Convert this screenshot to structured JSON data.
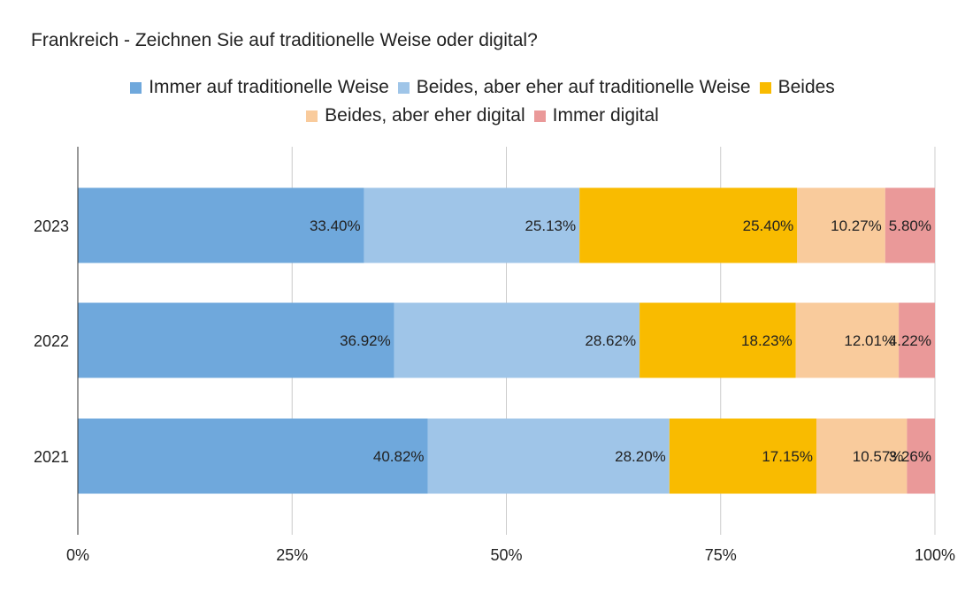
{
  "chart_data": {
    "type": "bar",
    "orientation": "horizontal",
    "stacked": "percent",
    "title": "Frankreich - Zeichnen Sie auf traditionelle Weise oder digital?",
    "categories": [
      "2023",
      "2022",
      "2021"
    ],
    "series": [
      {
        "name": "Immer auf traditionelle Weise",
        "color": "#6fa8dc",
        "values": [
          33.4,
          36.92,
          40.82
        ],
        "labels": [
          "33.40%",
          "36.92%",
          "40.82%"
        ]
      },
      {
        "name": "Beides, aber eher auf traditionelle Weise",
        "color": "#9fc5e8",
        "values": [
          25.13,
          28.62,
          28.2
        ],
        "labels": [
          "25.13%",
          "28.62%",
          "28.20%"
        ]
      },
      {
        "name": "Beides",
        "color": "#f9bb00",
        "values": [
          25.4,
          18.23,
          17.15
        ],
        "labels": [
          "25.40%",
          "18.23%",
          "17.15%"
        ]
      },
      {
        "name": "Beides, aber eher digital",
        "color": "#f9cb9c",
        "values": [
          10.27,
          12.01,
          10.57
        ],
        "labels": [
          "10.27%",
          "12.01%",
          "10.57%"
        ]
      },
      {
        "name": "Immer digital",
        "color": "#ea9999",
        "values": [
          5.8,
          4.22,
          3.26
        ],
        "labels": [
          "5.80%",
          "4.22%",
          "3.26%"
        ]
      }
    ],
    "xlim": [
      0,
      100
    ],
    "xticks": [
      0,
      25,
      50,
      75,
      100
    ],
    "xtick_labels": [
      "0%",
      "25%",
      "50%",
      "75%",
      "100%"
    ],
    "grid": true,
    "legend_position": "top"
  }
}
